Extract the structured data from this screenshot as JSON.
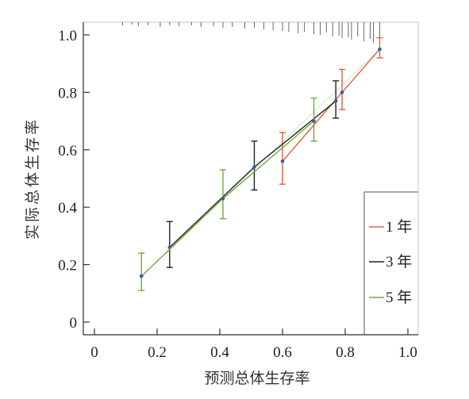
{
  "chart_data": {
    "type": "line",
    "xlabel": "预测总体生存率",
    "ylabel": "实际总体生存率",
    "xlim": [
      0,
      1.0
    ],
    "ylim": [
      0,
      1.0
    ],
    "xticks": [
      "0",
      "0.2",
      "0.4",
      "0.6",
      "0.8",
      "1.0"
    ],
    "yticks": [
      "0",
      "0.2",
      "0.4",
      "0.6",
      "0.8",
      "1.0"
    ],
    "xtick_values": [
      0,
      0.2,
      0.4,
      0.6,
      0.8,
      1.0
    ],
    "ytick_values": [
      0,
      0.2,
      0.4,
      0.6,
      0.8,
      1.0
    ],
    "legend_position": "bottom-right",
    "series": [
      {
        "name": "1 年",
        "color": "#e0603c",
        "points": [
          {
            "x": 0.6,
            "y": 0.56,
            "lo": 0.48,
            "hi": 0.66
          },
          {
            "x": 0.79,
            "y": 0.8,
            "lo": 0.74,
            "hi": 0.88
          },
          {
            "x": 0.91,
            "y": 0.95,
            "lo": 0.92,
            "hi": 0.99
          }
        ]
      },
      {
        "name": "3 年",
        "color": "#222222",
        "points": [
          {
            "x": 0.24,
            "y": 0.26,
            "lo": 0.19,
            "hi": 0.35
          },
          {
            "x": 0.51,
            "y": 0.54,
            "lo": 0.46,
            "hi": 0.63
          },
          {
            "x": 0.77,
            "y": 0.77,
            "lo": 0.71,
            "hi": 0.84
          }
        ]
      },
      {
        "name": "5 年",
        "color": "#6aae3a",
        "points": [
          {
            "x": 0.15,
            "y": 0.16,
            "lo": 0.11,
            "hi": 0.24
          },
          {
            "x": 0.41,
            "y": 0.43,
            "lo": 0.36,
            "hi": 0.53
          },
          {
            "x": 0.7,
            "y": 0.7,
            "lo": 0.63,
            "hi": 0.78
          }
        ]
      }
    ]
  }
}
